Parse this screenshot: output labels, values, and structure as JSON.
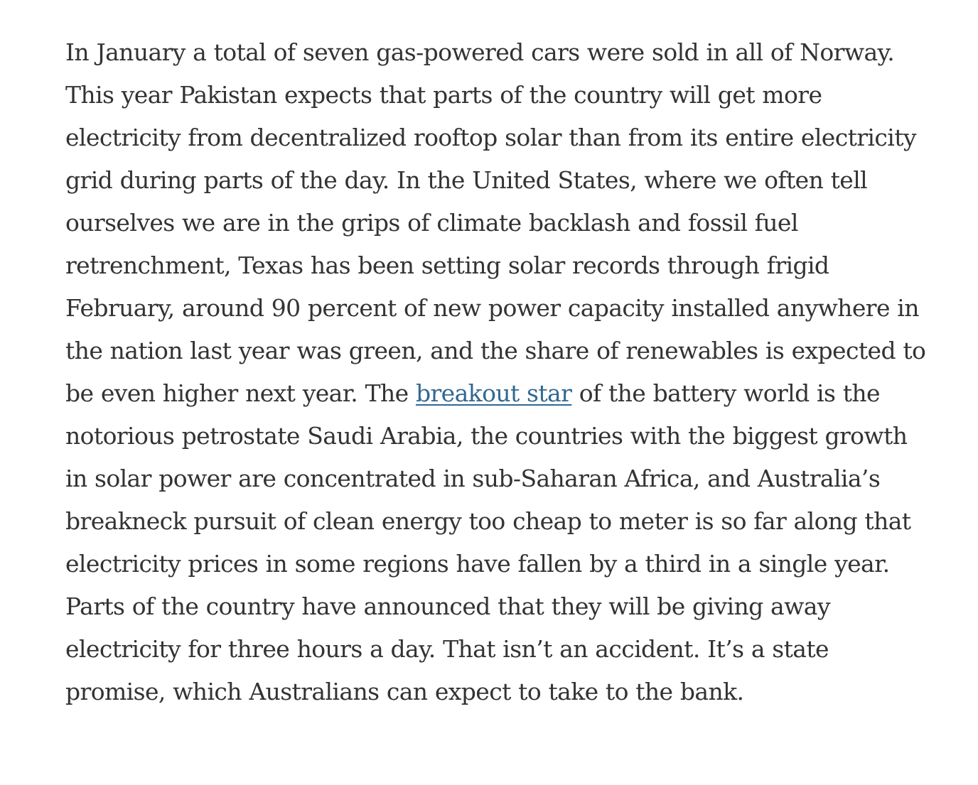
{
  "article": {
    "paragraph": {
      "before_link": "In January a total of seven gas-powered cars were sold in all of Norway. This year Pakistan expects that parts of the country will get more electricity from decentralized rooftop solar than from its entire electricity grid during parts of the day. In the United States, where we often tell ourselves we are in the grips of climate backlash and fossil fuel retrenchment, Texas has been setting solar records through frigid February, around 90 percent of new power capacity installed anywhere in the nation last year was green, and the share of renewables is expected to be even higher next year. The ",
      "link_text": "breakout star",
      "after_link": " of the battery world is the notorious petrostate Saudi Arabia, the countries with the biggest growth in solar power are concentrated in sub-Saharan Africa, and Australia’s breakneck pursuit of clean energy too cheap to meter is so far along that electricity prices in some regions have fallen by a third in a single year. Parts of the country have announced that they will be giving away electricity for three hours a day. That isn’t an accident. It’s a state promise, which Australians can expect to take to the bank."
    }
  },
  "colors": {
    "text": "#333333",
    "link": "#326891",
    "background": "#ffffff"
  }
}
